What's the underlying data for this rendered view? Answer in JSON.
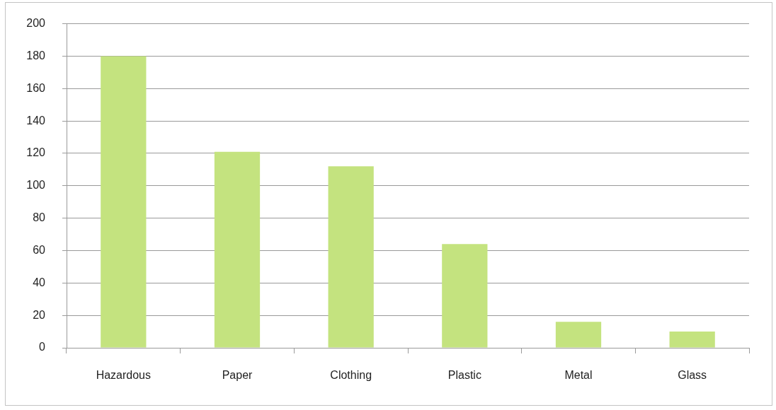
{
  "chart_data": {
    "type": "bar",
    "categories": [
      "Hazardous",
      "Paper",
      "Clothing",
      "Plastic",
      "Metal",
      "Glass"
    ],
    "values": [
      180,
      121,
      112,
      64,
      16,
      10
    ],
    "color": "#c4e37f",
    "ylim": [
      0,
      200
    ],
    "yticks": [
      0,
      20,
      40,
      60,
      80,
      100,
      120,
      140,
      160,
      180,
      200
    ],
    "grid": "y"
  }
}
